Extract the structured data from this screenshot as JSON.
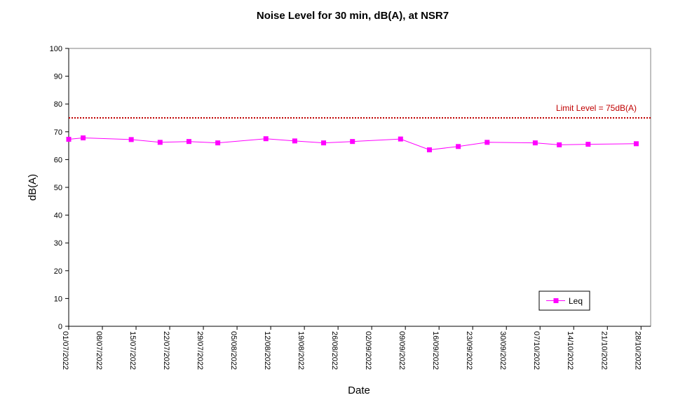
{
  "chart_data": {
    "type": "line",
    "title": "Noise Level for 30 min, dB(A), at NSR7",
    "xlabel": "Date",
    "ylabel": "dB(A)",
    "ylim": [
      0,
      100
    ],
    "yticks": [
      0,
      10,
      20,
      30,
      40,
      50,
      60,
      70,
      80,
      90,
      100
    ],
    "xlim": [
      "2022-07-01",
      "2022-10-30"
    ],
    "xtick_labels": [
      "01/07/2022",
      "08/07/2022",
      "15/07/2022",
      "22/07/2022",
      "29/07/2022",
      "05/08/2022",
      "12/08/2022",
      "19/08/2022",
      "26/08/2022",
      "02/09/2022",
      "09/09/2022",
      "16/09/2022",
      "23/09/2022",
      "30/09/2022",
      "07/10/2022",
      "14/10/2022",
      "21/10/2022",
      "28/10/2022"
    ],
    "xtick_dates": [
      "2022-07-01",
      "2022-07-08",
      "2022-07-15",
      "2022-07-22",
      "2022-07-29",
      "2022-08-05",
      "2022-08-12",
      "2022-08-19",
      "2022-08-26",
      "2022-09-02",
      "2022-09-09",
      "2022-09-16",
      "2022-09-23",
      "2022-09-30",
      "2022-10-07",
      "2022-10-14",
      "2022-10-21",
      "2022-10-28"
    ],
    "grid": false,
    "legend_position": "bottom-right",
    "limit_line": {
      "value": 75,
      "label": "Limit Level  = 75dB(A)",
      "color": "#c00000"
    },
    "series": [
      {
        "name": "Leq",
        "color": "#ff00ff",
        "points": [
          {
            "x": "2022-07-01",
            "y": 67.3
          },
          {
            "x": "2022-07-04",
            "y": 67.8
          },
          {
            "x": "2022-07-14",
            "y": 67.2
          },
          {
            "x": "2022-07-20",
            "y": 66.2
          },
          {
            "x": "2022-07-26",
            "y": 66.5
          },
          {
            "x": "2022-08-01",
            "y": 66.0
          },
          {
            "x": "2022-08-11",
            "y": 67.5
          },
          {
            "x": "2022-08-17",
            "y": 66.7
          },
          {
            "x": "2022-08-23",
            "y": 66.0
          },
          {
            "x": "2022-08-29",
            "y": 66.5
          },
          {
            "x": "2022-09-08",
            "y": 67.4
          },
          {
            "x": "2022-09-14",
            "y": 63.5
          },
          {
            "x": "2022-09-20",
            "y": 64.7
          },
          {
            "x": "2022-09-26",
            "y": 66.2
          },
          {
            "x": "2022-10-06",
            "y": 66.0
          },
          {
            "x": "2022-10-11",
            "y": 65.3
          },
          {
            "x": "2022-10-17",
            "y": 65.5
          },
          {
            "x": "2022-10-27",
            "y": 65.7
          }
        ]
      }
    ]
  }
}
